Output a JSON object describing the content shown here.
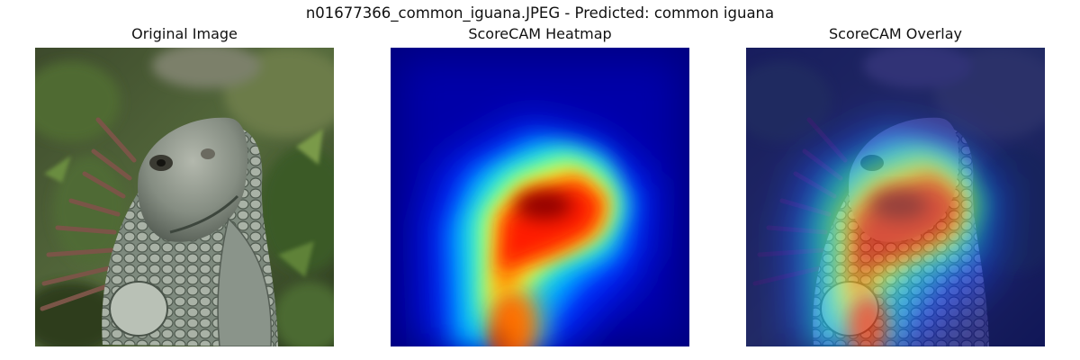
{
  "figure": {
    "suptitle": "n01677366_common_iguana.JPEG - Predicted: common iguana"
  },
  "panels": [
    {
      "title": "Original Image",
      "image": "iguana-photo"
    },
    {
      "title": "ScoreCAM Heatmap",
      "image": "scorecam-heatmap",
      "colormap": "jet"
    },
    {
      "title": "ScoreCAM Overlay",
      "image": "scorecam-overlay"
    }
  ],
  "colors": {
    "jet_low": "#00007f",
    "jet_mid": "#00ffff",
    "jet_high": "#ff0000",
    "jet_peak": "#7f0000"
  }
}
